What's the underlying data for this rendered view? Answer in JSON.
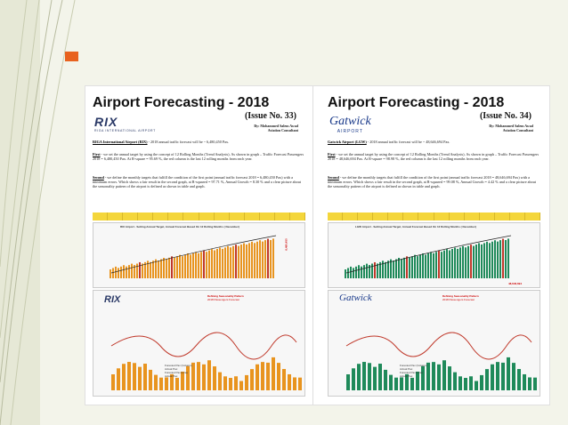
{
  "slide": {
    "pages": [
      {
        "title": "Airport Forecasting - 2018",
        "issue": "(Issue No. 33)",
        "author_line1": "By: Mohammed Salem Awad",
        "author_line2": "Aviation Consultant",
        "logo_text": "RIX",
        "logo_sub": "RIGA INTERNATIONAL AIRPORT",
        "heading": "RIGA International Airport (RIX)",
        "intro": "- 2018 annual traffic forecast will be ~ 6,480,450 Pax.",
        "first_label": "First",
        "first_text": "- we set the annual target by using the concept of 12 Rolling Months (Trend Analysis). As shown in graph – Traffic Forecast Passengers 2018 = 6,480,450 Pax. At R-square = 95.69 %, the red column is the last 12 rolling months from each year.",
        "second_label": "Second",
        "second_text": "- we define the monthly targets that fulfill the condition of the first point (annual traffic forecast 2018 = 6,480,450 Pax) with a minimum errors. Which shows a fair result in the second graph, at R-squared = 97.71 %, Annual Growth = 8.30 % and a clear picture about the seasonality pattern of the airport is defined as shown in table and graph.",
        "chart1_title": "RIX Airport - Setting Annual Target, Annual Forecast Based On 12 Rolling Months ( December)",
        "chart1_value": "6,480,450",
        "chart2_title": "Defining Seasonality Pattern",
        "chart2_sub": "2018 Passengers Forecast",
        "chart2_legend": [
          "Forecast Pax (Column)",
          "Actual Pax",
          "Forecast Pax (Line)",
          "Actual Pax"
        ]
      },
      {
        "title": "Airport Forecasting - 2018",
        "issue": "(Issue No. 34)",
        "author_line1": "By: Mohammed Salem Awad",
        "author_line2": "Aviation Consultant",
        "logo_text": "Gatwick",
        "logo_sub": "AIRPORT",
        "heading": "Gatwick Airport (LGW)",
        "intro": "- 2018 annual traffic forecast will be ~ 48,646,694 Pax.",
        "first_label": "First",
        "first_text": "- we set the annual target by using the concept of 12 Rolling Months (Trend Analysis). As shown in graph – Traffic Forecast Passengers 2018 = 48,646,694 Pax. At R-square = 98.98 %, the red column is the last 12 rolling months from each year.",
        "second_label": "Second",
        "second_text": "- we define the monthly targets that fulfill the condition of the first point (annual traffic forecast 2018 = 48,646,694 Pax) with a minimum errors. Which shows a fair result in the second graph, at R-squared = 99.08 %, Annual Growth = 4.42 % and a clear picture about the seasonality pattern of the airport is defined as shown in table and graph.",
        "chart1_title": "LGW Airport - Setting Annual Target, Annual Forecast Based On 12 Rolling Months ( December)",
        "chart1_value": "48,646,694",
        "chart2_title": "Defining Seasonality Pattern",
        "chart2_sub": "2018 Passengers Forecast",
        "chart2_legend": [
          "Forecast Pax (Column)",
          "Actual Pax",
          "Forecast Pax (Line)",
          "Actual Pax"
        ]
      }
    ]
  },
  "colors": {
    "accent": "#e8621f",
    "bar_orange": "#e8941f",
    "bar_green": "#1f8a5a",
    "bar_red": "#c0392b",
    "trend": "#222222"
  }
}
